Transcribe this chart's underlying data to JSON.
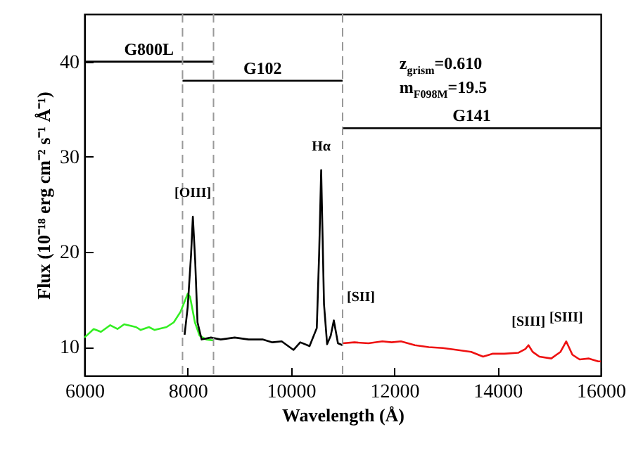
{
  "chart_data": {
    "type": "line",
    "xlabel": "Wavelength (Å)",
    "ylabel": "Flux (10⁻¹⁸ erg cm⁻² s⁻¹ Å⁻¹)",
    "xlim": [
      6000,
      16000
    ],
    "ylim": [
      7,
      45
    ],
    "xticks": [
      6000,
      8000,
      10000,
      12000,
      14000,
      16000
    ],
    "yticks": [
      10,
      20,
      30,
      40
    ],
    "line_style": "solid",
    "marker": "none",
    "series": [
      {
        "color": "#33ee22",
        "x": [
          6000,
          6180,
          6320,
          6500,
          6640,
          6770,
          7000,
          7090,
          7250,
          7360,
          7590,
          7730,
          7860,
          8000,
          8045,
          8140,
          8230,
          8360,
          8500
        ],
        "values": [
          11.0,
          11.9,
          11.6,
          12.3,
          11.9,
          12.4,
          12.1,
          11.8,
          12.1,
          11.8,
          12.1,
          12.6,
          13.7,
          15.6,
          15.3,
          12.6,
          11.2,
          10.8,
          10.7
        ]
      },
      {
        "color": "#000000",
        "x": [
          7940,
          8000,
          8065,
          8100,
          8145,
          8190,
          8270,
          8450,
          8640,
          8910,
          9180,
          9450,
          9640,
          9820,
          10050,
          10180,
          10360,
          10500,
          10545,
          10585,
          10640,
          10700,
          10770,
          10830,
          10910,
          11000
        ],
        "values": [
          11.3,
          14.2,
          19.7,
          23.7,
          19.1,
          12.6,
          10.8,
          11.0,
          10.8,
          11.0,
          10.8,
          10.8,
          10.5,
          10.6,
          9.7,
          10.5,
          10.1,
          12.0,
          19.7,
          28.6,
          14.5,
          10.3,
          11.2,
          12.8,
          10.4,
          10.2
        ]
      },
      {
        "color": "#ee1111",
        "x": [
          11000,
          11230,
          11500,
          11770,
          11950,
          12130,
          12400,
          12670,
          12940,
          13220,
          13490,
          13720,
          13900,
          14130,
          14400,
          14540,
          14600,
          14680,
          14810,
          15040,
          15220,
          15330,
          15450,
          15590,
          15770,
          15950,
          16000
        ],
        "values": [
          10.4,
          10.5,
          10.4,
          10.6,
          10.5,
          10.6,
          10.2,
          10.0,
          9.9,
          9.7,
          9.5,
          9.0,
          9.3,
          9.3,
          9.4,
          9.8,
          10.2,
          9.5,
          9.0,
          8.8,
          9.5,
          10.6,
          9.2,
          8.7,
          8.8,
          8.5,
          8.5
        ]
      },
      {
        "name": "G800L",
        "color": "#000000",
        "x": [
          6000,
          8500
        ],
        "values": [
          40,
          40
        ]
      },
      {
        "name": "G102",
        "color": "#000000",
        "x": [
          7900,
          11000
        ],
        "values": [
          38,
          38
        ]
      },
      {
        "name": "G141",
        "color": "#000000",
        "x": [
          11000,
          16000
        ],
        "values": [
          33,
          33
        ]
      }
    ],
    "ref_lines": [
      {
        "axis": "x",
        "value": 7900,
        "color": "#999999",
        "line_style": "dashed"
      },
      {
        "axis": "x",
        "value": 8500,
        "color": "#999999",
        "line_style": "dashed"
      },
      {
        "axis": "x",
        "value": 11000,
        "color": "#999999",
        "line_style": "dashed"
      }
    ],
    "annotations": [
      {
        "text": "[OIII]",
        "x": 8100,
        "y": 23.7
      },
      {
        "text": "Hα",
        "x": 10585,
        "y": 28.6
      },
      {
        "text": "[SII]",
        "x": 10830,
        "y": 12.8
      },
      {
        "text": "[SIII]",
        "x": 14600,
        "y": 10.2
      },
      {
        "text": "[SIII]",
        "x": 15330,
        "y": 10.6
      },
      "z$_{grism}$=0.610",
      "m$_{F098M}$=19.5"
    ]
  }
}
